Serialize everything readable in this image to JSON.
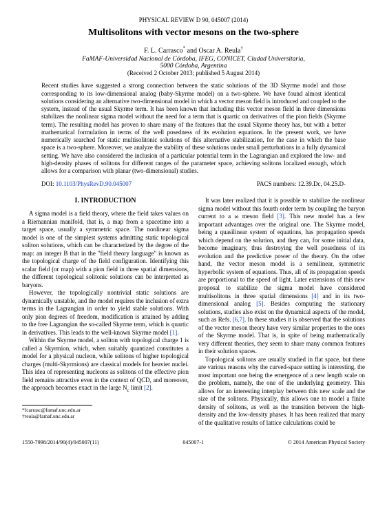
{
  "journal_header": "PHYSICAL REVIEW D 90, 045007 (2014)",
  "title": "Multisolitons with vector mesons on the two-sphere",
  "authors_html": "F. L. Carrasco* and Oscar A. Reula†",
  "affiliation_line1": "FaMAF-Universidad Nacional de Córdoba, IFEG, CONICET, Ciudad Universitaria,",
  "affiliation_line2": "5000 Córdoba, Argentina",
  "dates": "(Received 2 October 2013; published 5 August 2014)",
  "abstract": "Recent studies have suggested a strong connection between the static solutions of the 3D Skyrme model and those corresponding to its low-dimensional analog (baby-Skyrme model) on a two-sphere. We have found almost identical solutions considering an alternative two-dimensional model in which a vector meson field is introduced and coupled to the system, instead of the usual Skyrme term. It has been known that including this vector meson field in three dimensions stabilizes the nonlinear sigma model without the need for a term that is quartic on derivatives of the pion fields (Skyrme term). The resulting model has proven to share many of the features that the usual Skyrme theory has, but with a better mathematical formulation in terms of the well posedness of its evolution equations. In the present work, we have numerically searched for static multisolitonic solutions of this alternative stabilization, for the case in which the base space is a two-sphere. Moreover, we analyze the stability of these solutions under small perturbations in a fully dynamical setting. We have also considered the inclusion of a particular potential term in the Lagrangian and explored the low- and high-density phases of solitons for different ranges of the parameter space, achieving solitons localized enough, which allows for a comparison with planar (two-dimensional) studies.",
  "doi_label": "DOI:",
  "doi_link": "10.1103/PhysRevD.90.045007",
  "pacs": "PACS numbers: 12.39.Dc, 04.25.D-",
  "section1": "I.  INTRODUCTION",
  "col1_p1": "A sigma model is a field theory, where the field takes values on a Riemannian manifold, that is, a map from a spacetime into a target space, usually a symmetric space. The nonlinear sigma model is one of the simplest systems admitting static topological soliton solutions, which can be characterized by the degree of the map: an integer B that in the \"field theory language\" is known as the topological charge of the field configuration. Identifying this scalar field (or map) with a pion field in three spatial dimensions, the different topological solitonic solutions can be interpreted as baryons.",
  "col1_p2_a": "However, the topologically nontrivial static solutions are dynamically unstable, and the model requires the inclusion of extra terms in the Lagrangian in order to yield stable solutions. With only pion degrees of freedom, modification is attained by adding to the free Lagrangian the so-called Skyrme term, which is quartic in derivatives. This leads to the well-known Skyrme model ",
  "ref1": "[1]",
  "col1_p2_b": ".",
  "col1_p3_a": "Within the Skyrme model, a soliton with topological charge 1 is called a Skyrmion, which, when suitably quantized constitutes a model for a physical nucleon, while solitons of higher topological charges (multi-Skyrmions) are classical models for heavier nuclei. This idea of representing nucleons as solitons of the effective pion field remains attractive even in the context of QCD, and moreover, the approach becomes exact in the large N",
  "nc_sub": "c",
  "col1_p3_b": " limit ",
  "ref2": "[2]",
  "col1_p3_c": ".",
  "col2_p1_a": "It was later realized that it is possible to stabilize the nonlinear sigma model without this fourth order term by coupling the baryon current to a ω meson field ",
  "ref3": "[3]",
  "col2_p1_b": ". This new model has a few important advantages over the original one. The Skyrme model, being a quasilinear system of equations, has propagation speeds which depend on the solution, and they can, for some initial data, become imaginary, thus destroying the well posedness of its evolution and the predictive power of the theory. On the other hand, the vector meson model is a semilinear, symmetric hyperbolic system of equations. Thus, all of its propagation speeds are proportional to the speed of light. Later extensions of this new proposal to stabilize the sigma model have considered multisolitons in three spatial dimensions ",
  "ref4": "[4]",
  "col2_p1_c": " and in its two-dimensional analog ",
  "ref5": "[5]",
  "col2_p1_d": ". Besides computing the stationary solutions, studies also exist on the dynamical aspects of the model, such as Refs. ",
  "ref67": "[6,7]",
  "col2_p1_e": ". In these studies it is observed that the solutions of the vector meson theory have very similar properties to the ones of the Skyrme model. That is, in spite of being mathematically very different theories, they seem to share many common features in their solution spaces.",
  "col2_p2": "Topological solitons are usually studied in flat space, but there are various reasons why the curved-space setting is interesting, the most important one being the emergence of a new length scale on the problem, namely, the one of the underlying geometry. This allows for an interesting interplay between this new scale and the size of the solitons. Physically, this allows one to model a finite density of solitons, as well as the transition between the high-density and the low-density phases. It has been realized that many of the qualitative results of lattice calculations could be",
  "footnote1": "*fcarrasc@famaf.unc.edu.ar",
  "footnote2": "†reula@famaf.unc.edu.ar",
  "footer_left": "1550-7998/2014/90(4)/045007(11)",
  "footer_center": "045007-1",
  "footer_right": "© 2014 American Physical Society"
}
